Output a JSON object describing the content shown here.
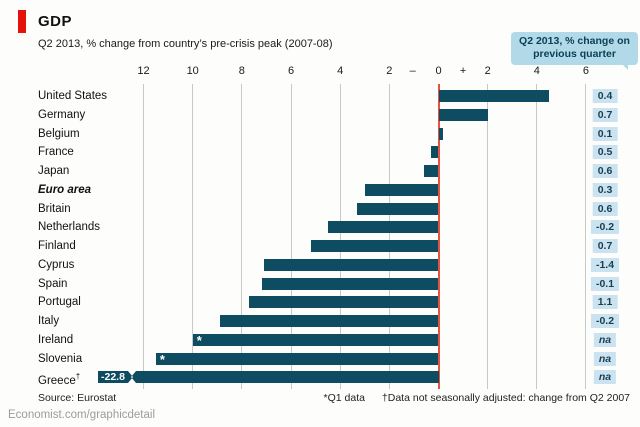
{
  "header": {
    "title": "GDP",
    "subtitle": "Q2 2013, % change from country’s pre-crisis peak (2007-08)"
  },
  "callout": {
    "line1": "Q2 2013, % change on",
    "line2": "previous quarter"
  },
  "colors": {
    "accent_red": "#e3120b",
    "bar": "#0e4d61",
    "zero_line": "#e25440",
    "grid": "#c8c8c8",
    "value_box_bg": "#cbe3f0",
    "value_box_text": "#173f50",
    "callout_bg": "#b2d9e8",
    "callout_text": "#0a4155"
  },
  "chart_data": {
    "type": "bar",
    "orientation": "horizontal",
    "title": "GDP",
    "subtitle": "Q2 2013, % change from country’s pre-crisis peak (2007-08)",
    "xlim": [
      -13.8,
      7.2
    ],
    "grid": true,
    "categories": [
      "United States",
      "Germany",
      "Belgium",
      "France",
      "Japan",
      "Euro area",
      "Britain",
      "Netherlands",
      "Finland",
      "Cyprus",
      "Spain",
      "Portugal",
      "Italy",
      "Ireland",
      "Slovenia",
      "Greece†"
    ],
    "values": [
      4.5,
      2.0,
      0.2,
      -0.3,
      -0.6,
      -3.0,
      -3.3,
      -4.5,
      -5.2,
      -7.1,
      -7.2,
      -7.7,
      -8.9,
      -10.0,
      -11.5,
      -22.8
    ],
    "bar_notes": [
      "",
      "",
      "",
      "",
      "",
      "",
      "",
      "",
      "",
      "",
      "",
      "",
      "",
      "*",
      "*",
      ""
    ],
    "emphasized_category_index": 5,
    "broken_bar": {
      "index": 15,
      "label": "-22.8"
    },
    "secondary": {
      "name": "Q2 2013, % change on previous quarter",
      "values": [
        "0.4",
        "0.7",
        "0.1",
        "0.5",
        "0.6",
        "0.3",
        "0.6",
        "-0.2",
        "0.7",
        "-1.4",
        "-0.1",
        "1.1",
        "-0.2",
        "na",
        "na",
        "na"
      ]
    },
    "axis": {
      "grid_values": [
        -12,
        -10,
        -8,
        -6,
        -4,
        -2,
        2,
        4,
        6
      ],
      "ticks": [
        {
          "t": "12",
          "v": -12
        },
        {
          "t": "10",
          "v": -10
        },
        {
          "t": "8",
          "v": -8
        },
        {
          "t": "6",
          "v": -6
        },
        {
          "t": "4",
          "v": -4
        },
        {
          "t": "2",
          "v": -2
        },
        {
          "t": "–",
          "v": -1.05
        },
        {
          "t": "0",
          "v": 0
        },
        {
          "t": "+",
          "v": 1.0
        },
        {
          "t": "2",
          "v": 2
        },
        {
          "t": "4",
          "v": 4
        },
        {
          "t": "6",
          "v": 6
        }
      ]
    }
  },
  "footer": {
    "source": "Source: Eurostat",
    "footnote1": "*Q1 data",
    "footnote2": "†Data not seasonally adjusted: change from Q2 2007",
    "credit": "Economist.com/graphicdetail"
  }
}
